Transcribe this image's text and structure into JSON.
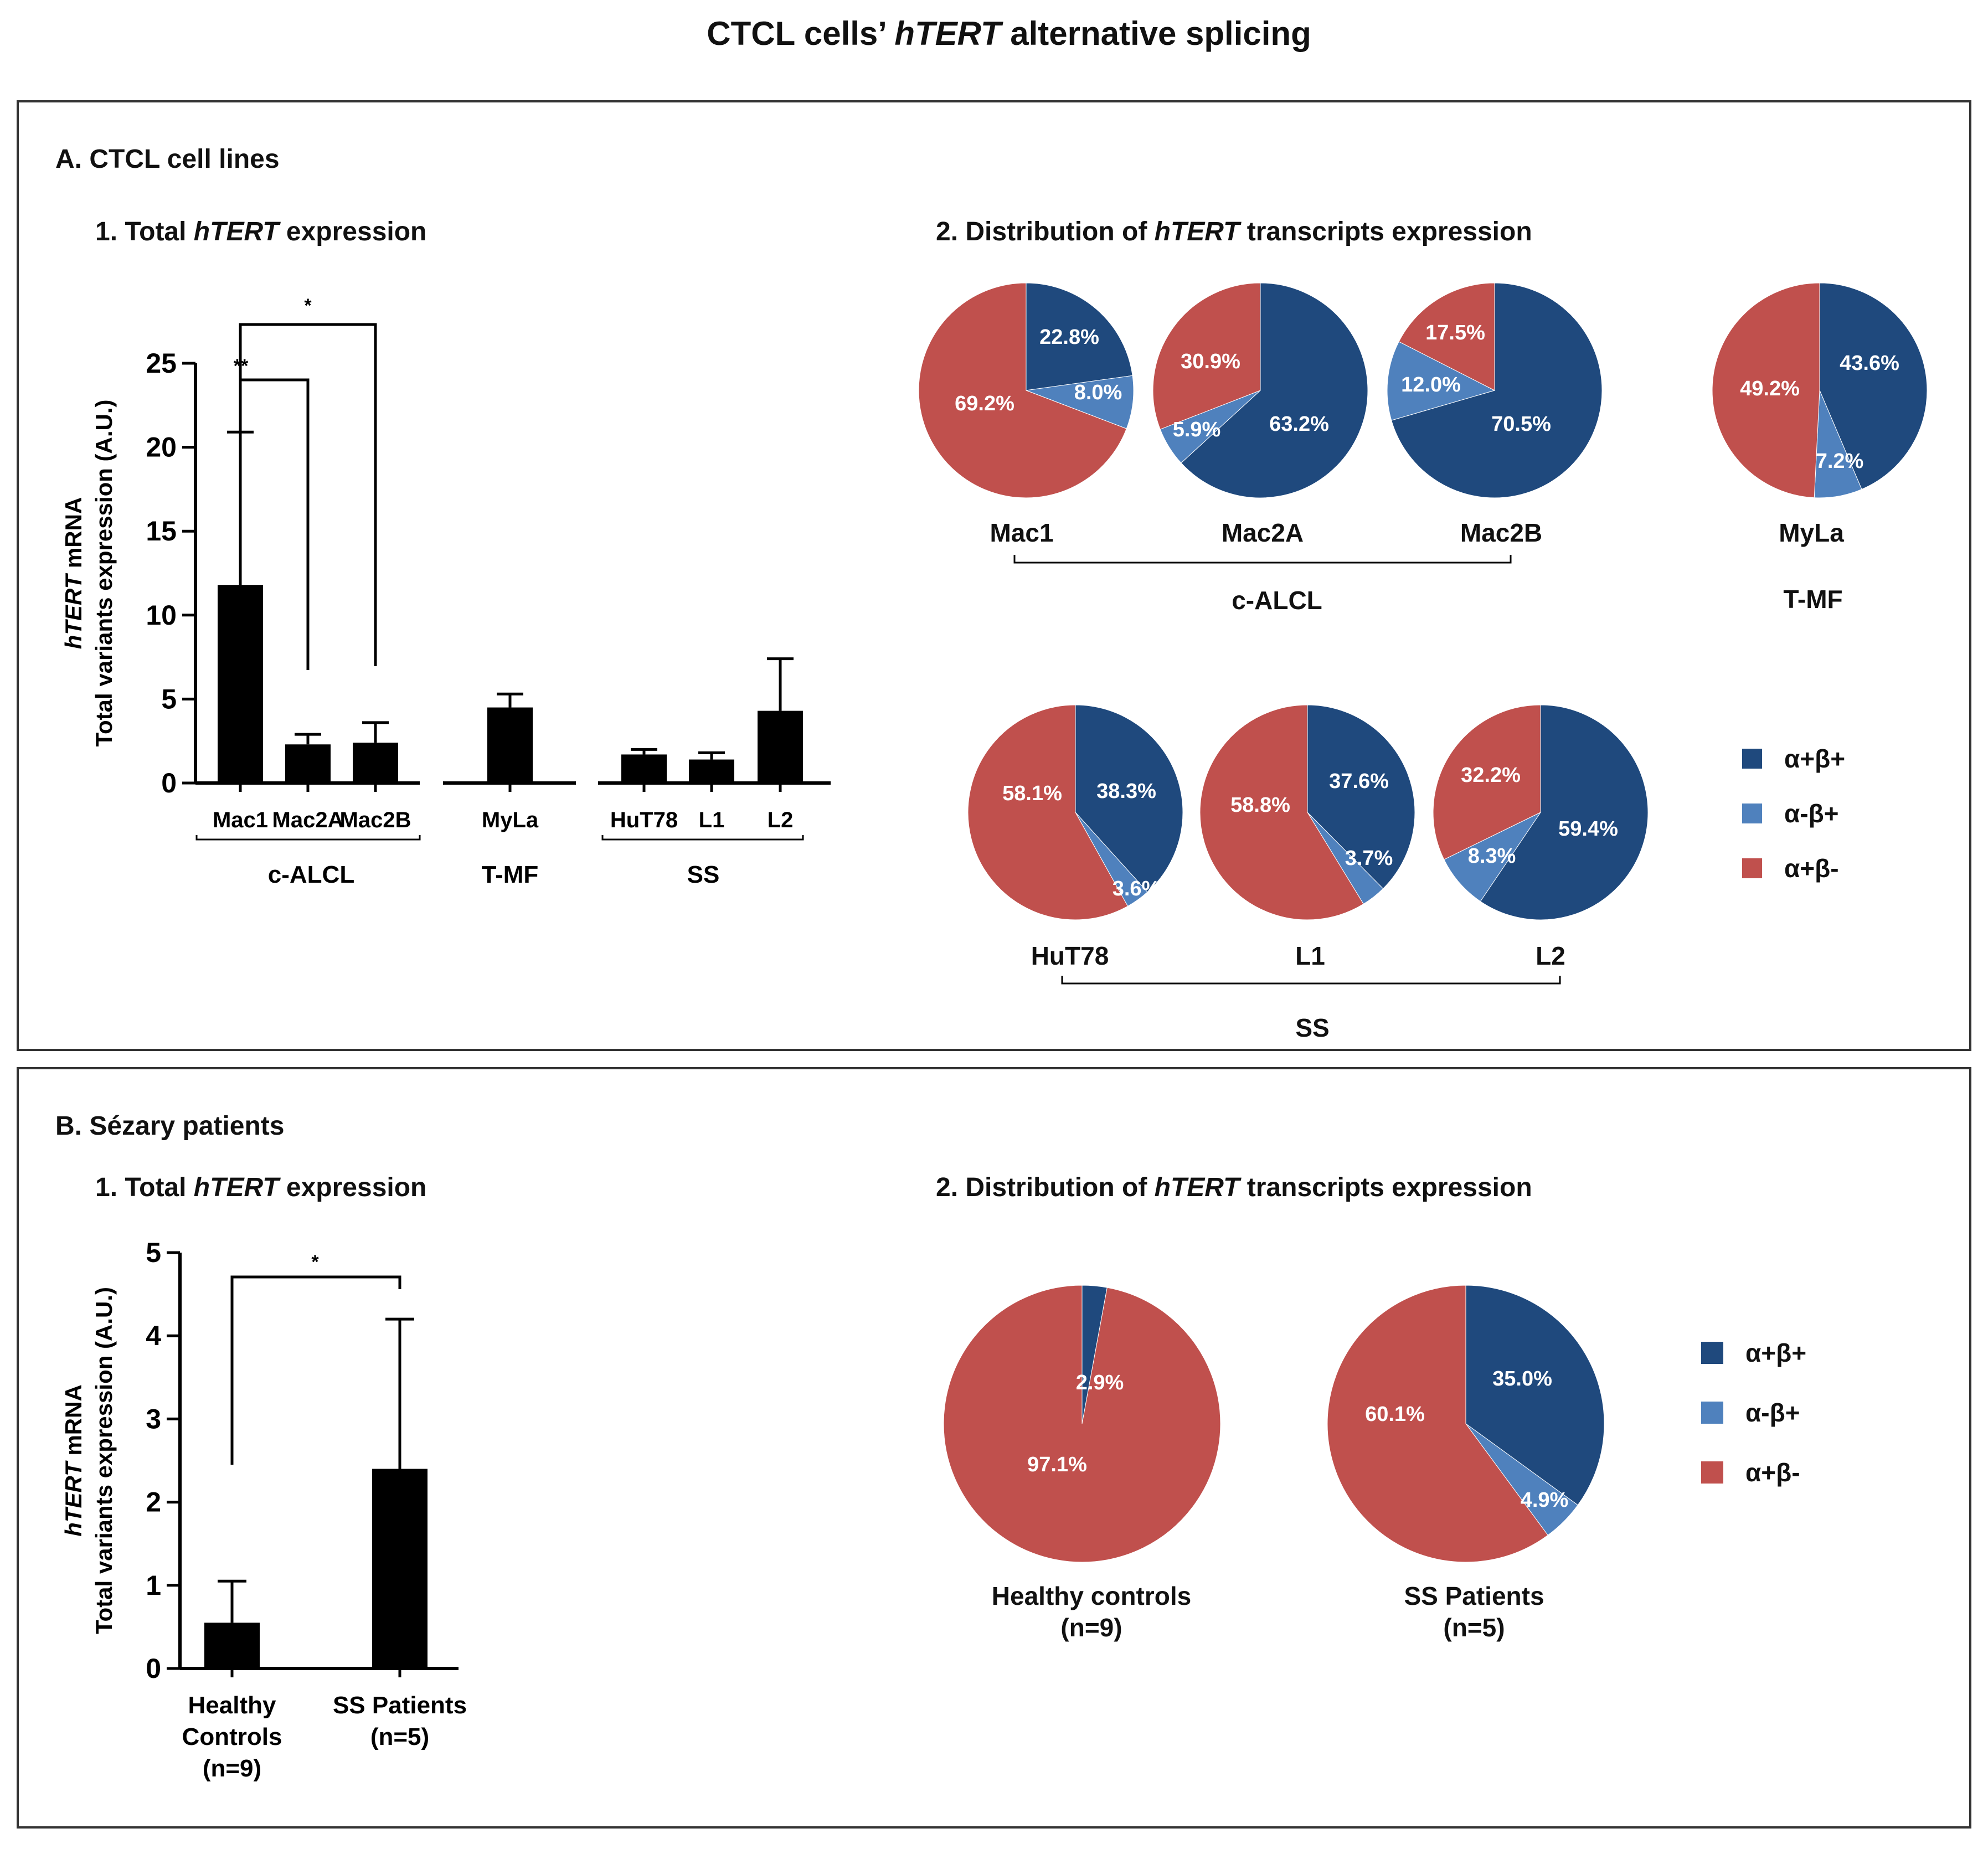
{
  "figure": {
    "title_prefix": "CTCL cells’ ",
    "title_italic": "hTERT",
    "title_suffix": " alternative splicing"
  },
  "colors": {
    "alpha_plus_beta_plus": "#1f497d",
    "alpha_minus_beta_plus": "#4f81bd",
    "alpha_plus_beta_minus": "#c0504d",
    "bar": "#000000"
  },
  "legend": {
    "items": [
      {
        "label": "α+β+",
        "color": "#1f497d"
      },
      {
        "label": "α-β+",
        "color": "#4f81bd"
      },
      {
        "label": "α+β-",
        "color": "#c0504d"
      }
    ]
  },
  "panelA": {
    "title": "A. CTCL cell lines",
    "sub1": {
      "prefix": "1. Total ",
      "italic": "hTERT",
      "suffix": " expression"
    },
    "sub2": {
      "prefix": "2. Distribution of ",
      "italic": "hTERT",
      "suffix": " transcripts expression"
    },
    "pie_groups": [
      {
        "label": "c-ALCL"
      },
      {
        "label": "T-MF"
      },
      {
        "label": "SS"
      }
    ]
  },
  "panelB": {
    "title": "B. Sézary patients",
    "sub1": {
      "prefix": "1. Total ",
      "italic": "hTERT",
      "suffix": " expression"
    },
    "sub2": {
      "prefix": "2. Distribution of ",
      "italic": "hTERT",
      "suffix": " transcripts expression"
    }
  },
  "chart_data": [
    {
      "id": "A1",
      "type": "bar",
      "title": "1. Total hTERT expression",
      "ylabel_line1_italic": "hTERT",
      "ylabel_line1_suffix": " mRNA",
      "ylabel_line2": "Total variants expression (A.U.)",
      "ylim": [
        0,
        25
      ],
      "yticks": [
        0,
        5,
        10,
        15,
        20,
        25
      ],
      "categories": [
        "Mac1",
        "Mac2A",
        "Mac2B",
        "MyLa",
        "HuT78",
        "L1",
        "L2"
      ],
      "values": [
        11.8,
        2.3,
        2.4,
        4.5,
        1.7,
        1.4,
        4.3
      ],
      "errors": [
        9.1,
        0.6,
        1.2,
        0.8,
        0.3,
        0.4,
        3.1
      ],
      "groups": [
        {
          "label": "c-ALCL",
          "members": [
            "Mac1",
            "Mac2A",
            "Mac2B"
          ]
        },
        {
          "label": "T-MF",
          "members": [
            "MyLa"
          ]
        },
        {
          "label": "SS",
          "members": [
            "HuT78",
            "L1",
            "L2"
          ]
        }
      ],
      "significance": [
        {
          "from": "Mac1",
          "to": "Mac2A",
          "label": "**"
        },
        {
          "from": "Mac1",
          "to": "Mac2B",
          "label": "*"
        }
      ]
    },
    {
      "id": "A2",
      "type": "pie",
      "title": "2. Distribution of hTERT transcripts expression",
      "series_names": [
        "α+β+",
        "α-β+",
        "α+β-"
      ],
      "pies": [
        {
          "label": "Mac1",
          "values": [
            22.8,
            8.0,
            69.2
          ],
          "labels": [
            "22.8%",
            "8.0%",
            "69.2%"
          ]
        },
        {
          "label": "Mac2A",
          "values": [
            63.2,
            5.9,
            30.9
          ],
          "labels": [
            "63.2%",
            "5.9%",
            "30.9%"
          ]
        },
        {
          "label": "Mac2B",
          "values": [
            70.5,
            12.0,
            17.5
          ],
          "labels": [
            "70.5%",
            "12.0%",
            "17.5%"
          ]
        },
        {
          "label": "MyLa",
          "values": [
            43.6,
            7.2,
            49.2
          ],
          "labels": [
            "43.6%",
            "7.2%",
            "49.2%"
          ]
        },
        {
          "label": "HuT78",
          "values": [
            38.3,
            3.6,
            58.1
          ],
          "labels": [
            "38.3%",
            "3.6%",
            "58.1%"
          ]
        },
        {
          "label": "L1",
          "values": [
            37.6,
            3.7,
            58.8
          ],
          "labels": [
            "37.6%",
            "3.7%",
            "58.8%"
          ]
        },
        {
          "label": "L2",
          "values": [
            59.4,
            8.3,
            32.2
          ],
          "labels": [
            "59.4%",
            "8.3%",
            "32.2%"
          ]
        }
      ]
    },
    {
      "id": "B1",
      "type": "bar",
      "title": "1. Total hTERT expression",
      "ylabel_line1_italic": "hTERT",
      "ylabel_line1_suffix": " mRNA",
      "ylabel_line2": "Total variants expression (A.U.)",
      "ylim": [
        0,
        5
      ],
      "yticks": [
        0,
        1,
        2,
        3,
        4,
        5
      ],
      "categories": [
        {
          "lines": [
            "Healthy",
            "Controls",
            "(n=9)"
          ]
        },
        {
          "lines": [
            "SS Patients",
            "(n=5)"
          ]
        }
      ],
      "values": [
        0.55,
        2.4
      ],
      "errors": [
        0.5,
        1.8
      ],
      "significance": [
        {
          "from": 0,
          "to": 1,
          "label": "*"
        }
      ]
    },
    {
      "id": "B2",
      "type": "pie",
      "title": "2. Distribution of hTERT transcripts expression",
      "series_names": [
        "α+β+",
        "α-β+",
        "α+β-"
      ],
      "pies": [
        {
          "label_lines": [
            "Healthy controls",
            "(n=9)"
          ],
          "values": [
            2.9,
            0,
            97.1
          ],
          "labels": [
            "2.9%",
            "",
            "97.1%"
          ]
        },
        {
          "label_lines": [
            "SS Patients",
            "(n=5)"
          ],
          "values": [
            35.0,
            4.9,
            60.1
          ],
          "labels": [
            "35.0%",
            "4.9%",
            "60.1%"
          ]
        }
      ]
    }
  ]
}
